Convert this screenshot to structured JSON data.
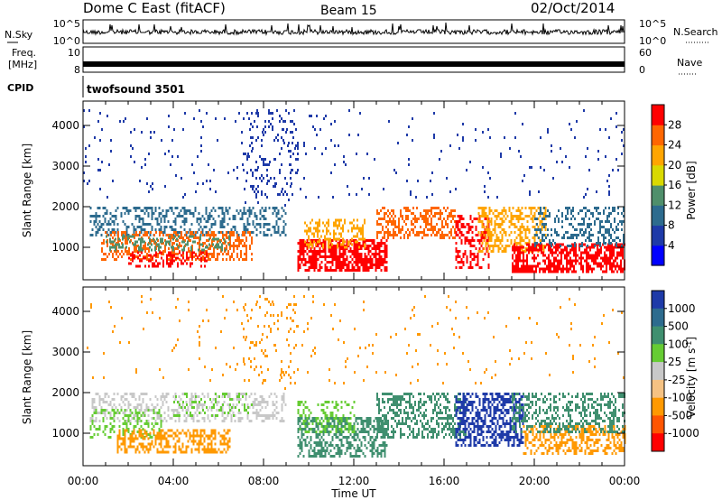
{
  "header": {
    "title": "Dome C East (fitACF)",
    "beam": "Beam 15",
    "date": "02/Oct/2014"
  },
  "top_panels": {
    "nsky_label": "N.Sky",
    "nsky_ticks": [
      "10^5",
      "10^0"
    ],
    "nsearch_label": "N.Search",
    "nsearch_ticks": [
      "10^5",
      "10^0"
    ],
    "freq_label_1": "Freq.",
    "freq_label_2": "[MHz]",
    "freq_ticks": [
      "10",
      "8"
    ],
    "nave_label": "Nave",
    "nave_ticks": [
      "60",
      "0"
    ],
    "cpid_label": "CPID",
    "cpid_text": "twofsound 3501"
  },
  "chart_data": [
    {
      "type": "heatmap",
      "name": "power",
      "ylabel": "Slant Range [km]",
      "ylim": [
        200,
        4600
      ],
      "yticks": [
        1000,
        2000,
        3000,
        4000
      ],
      "xlim": [
        0,
        24
      ],
      "xticks": [
        "00:00",
        "04:00",
        "08:00",
        "12:00",
        "16:00",
        "20:00",
        "00:00"
      ],
      "colorbar": {
        "label": "Power [dB]",
        "ticks": [
          "4",
          "8",
          "12",
          "16",
          "20",
          "24",
          "28"
        ],
        "colors": [
          "#0000ff",
          "#1e3aa8",
          "#2d6b8e",
          "#4f8f6b",
          "#d9d900",
          "#ffa500",
          "#ff6600",
          "#ff0000"
        ]
      },
      "regions": [
        {
          "t0": 0.3,
          "t1": 9.0,
          "r0": 1300,
          "r1": 2000,
          "color": "#2d6b8e",
          "density": 0.35
        },
        {
          "t0": 0.8,
          "t1": 7.5,
          "r0": 700,
          "r1": 1400,
          "color": "#ff6600",
          "density": 0.45
        },
        {
          "t0": 1.0,
          "t1": 6.5,
          "r0": 900,
          "r1": 1300,
          "color": "#4f8f6b",
          "density": 0.3
        },
        {
          "t0": 2.0,
          "t1": 5.5,
          "r0": 500,
          "r1": 900,
          "color": "#ff0000",
          "density": 0.35
        },
        {
          "t0": 9.5,
          "t1": 13.5,
          "r0": 400,
          "r1": 1200,
          "color": "#ff0000",
          "density": 0.7
        },
        {
          "t0": 9.8,
          "t1": 12.5,
          "r0": 1000,
          "r1": 1700,
          "color": "#ffa500",
          "density": 0.4
        },
        {
          "t0": 13.0,
          "t1": 16.5,
          "r0": 1200,
          "r1": 2000,
          "color": "#ff6600",
          "density": 0.45
        },
        {
          "t0": 16.5,
          "t1": 18.0,
          "r0": 500,
          "r1": 1800,
          "color": "#ff0000",
          "density": 0.4
        },
        {
          "t0": 17.5,
          "t1": 20.5,
          "r0": 900,
          "r1": 2000,
          "color": "#ffa500",
          "density": 0.45
        },
        {
          "t0": 19.0,
          "t1": 24.0,
          "r0": 400,
          "r1": 1100,
          "color": "#ff0000",
          "density": 0.6
        },
        {
          "t0": 20.0,
          "t1": 24.0,
          "r0": 1000,
          "r1": 2000,
          "color": "#2d6b8e",
          "density": 0.35
        },
        {
          "t0": 7.0,
          "t1": 9.5,
          "r0": 2000,
          "r1": 4400,
          "color": "#1e3aa8",
          "density": 0.12
        },
        {
          "t0": 0.0,
          "t1": 24.0,
          "r0": 2200,
          "r1": 4400,
          "color": "#1e3aa8",
          "density": 0.025
        }
      ]
    },
    {
      "type": "heatmap",
      "name": "velocity",
      "ylabel": "Slant Range [km]",
      "ylim": [
        200,
        4600
      ],
      "yticks": [
        1000,
        2000,
        3000,
        4000
      ],
      "xlim": [
        0,
        24
      ],
      "xticks": [
        "00:00",
        "04:00",
        "08:00",
        "12:00",
        "16:00",
        "20:00",
        "00:00"
      ],
      "xlabel": "Time UT",
      "colorbar": {
        "label": "Velocity [m s-1]",
        "ticks": [
          "1000",
          "500",
          "100",
          "25",
          "-25",
          "-100",
          "-500",
          "-1000"
        ],
        "colors": [
          "#1e3aa8",
          "#2d6b8e",
          "#3f8f6f",
          "#66cc33",
          "#c8c8c8",
          "#f5c283",
          "#ff9900",
          "#ff5500",
          "#ff0000"
        ]
      },
      "regions": [
        {
          "t0": 0.3,
          "t1": 9.0,
          "r0": 1300,
          "r1": 2000,
          "color": "#c8c8c8",
          "density": 0.35
        },
        {
          "t0": 0.3,
          "t1": 3.5,
          "r0": 900,
          "r1": 1600,
          "color": "#66cc33",
          "density": 0.3
        },
        {
          "t0": 1.5,
          "t1": 6.5,
          "r0": 500,
          "r1": 1100,
          "color": "#ff9900",
          "density": 0.5
        },
        {
          "t0": 4.0,
          "t1": 7.5,
          "r0": 1400,
          "r1": 2000,
          "color": "#66cc33",
          "density": 0.2
        },
        {
          "t0": 9.5,
          "t1": 13.5,
          "r0": 400,
          "r1": 1400,
          "color": "#3f8f6f",
          "density": 0.5
        },
        {
          "t0": 9.5,
          "t1": 12.0,
          "r0": 1000,
          "r1": 1800,
          "color": "#66cc33",
          "density": 0.3
        },
        {
          "t0": 13.0,
          "t1": 17.0,
          "r0": 900,
          "r1": 2000,
          "color": "#3f8f6f",
          "density": 0.45
        },
        {
          "t0": 16.5,
          "t1": 19.5,
          "r0": 700,
          "r1": 2000,
          "color": "#1e3aa8",
          "density": 0.55
        },
        {
          "t0": 19.5,
          "t1": 24.0,
          "r0": 500,
          "r1": 1200,
          "color": "#ff9900",
          "density": 0.45
        },
        {
          "t0": 19.0,
          "t1": 24.0,
          "r0": 1000,
          "r1": 2000,
          "color": "#3f8f6f",
          "density": 0.4
        },
        {
          "t0": 7.0,
          "t1": 9.5,
          "r0": 2000,
          "r1": 4400,
          "color": "#ff9900",
          "density": 0.08
        },
        {
          "t0": 0.0,
          "t1": 24.0,
          "r0": 2200,
          "r1": 4400,
          "color": "#ff9900",
          "density": 0.02
        }
      ]
    }
  ]
}
